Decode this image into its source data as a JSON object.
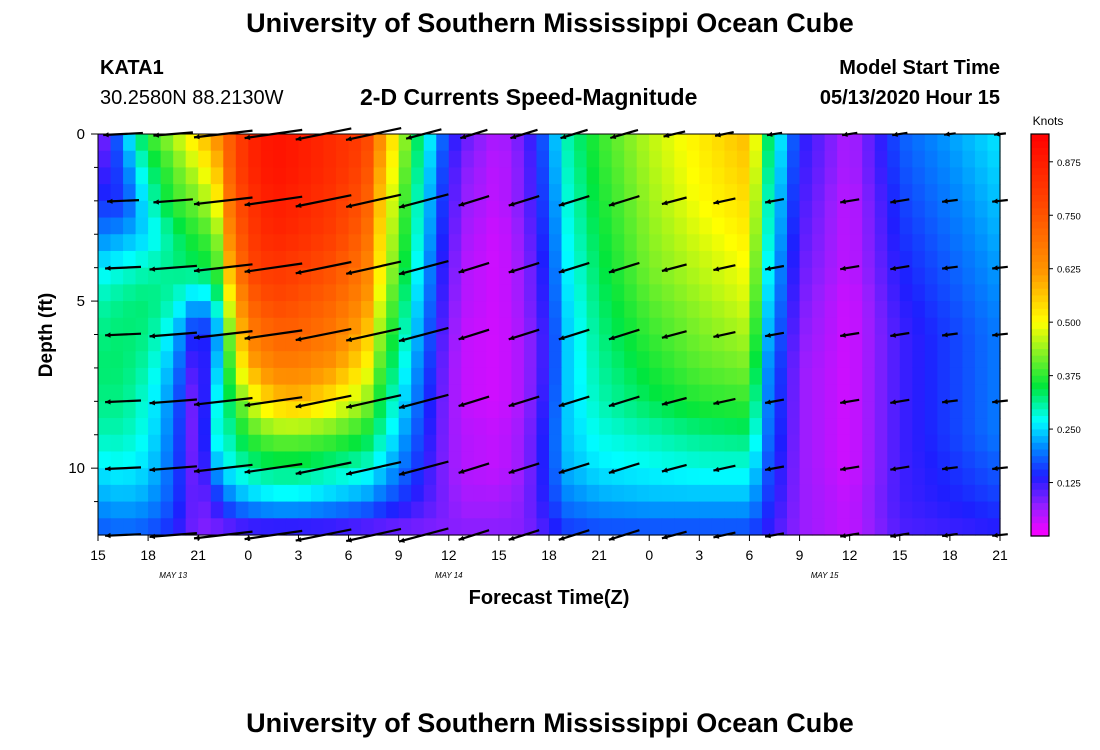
{
  "header": {
    "title": "University of Southern Mississippi Ocean Cube",
    "station_id": "KATA1",
    "station_coords": "30.2580N 88.2130W",
    "model_start_label": "Model Start Time",
    "model_start_value": "05/13/2020 Hour 15"
  },
  "footer": {
    "title": "University of Southern Mississippi Ocean Cube"
  },
  "chart_data": {
    "type": "heatmap",
    "title": "2-D Currents Speed-Magnitude",
    "xlabel": "Forecast Time(Z)",
    "ylabel": "Depth (ft)",
    "colorbar_label": "Knots",
    "x_hours": [
      0,
      3,
      6,
      9,
      12,
      15,
      18,
      21,
      24,
      27,
      30,
      33,
      36,
      39,
      42,
      45,
      48,
      51,
      54
    ],
    "x_tick_labels": [
      "15",
      "18",
      "21",
      "0",
      "3",
      "6",
      "9",
      "12",
      "15",
      "18",
      "21",
      "0",
      "3",
      "6",
      "9",
      "12",
      "15",
      "18",
      "21"
    ],
    "date_labels": [
      {
        "text": "MAY 13",
        "hour": 4.5
      },
      {
        "text": "MAY 14",
        "hour": 21
      },
      {
        "text": "MAY 15",
        "hour": 43.5
      }
    ],
    "depth_range": [
      0,
      12
    ],
    "y_ticks": [
      0,
      5,
      10
    ],
    "y_minor_ticks": [
      1,
      2,
      3,
      4,
      6,
      7,
      8,
      9,
      11
    ],
    "colorbar_range": [
      0,
      0.94
    ],
    "colorbar_ticks": [
      0.125,
      0.25,
      0.375,
      0.5,
      0.625,
      0.75,
      0.875
    ],
    "colorbar_tick_labels": [
      "0.125",
      "0.250",
      "0.375",
      "0.500",
      "0.625",
      "0.750",
      "0.875"
    ],
    "speed_depths": [
      0,
      1,
      2,
      3,
      4,
      5,
      6,
      7,
      8,
      9,
      10,
      11,
      12
    ],
    "speed_hours": [
      0,
      1.5,
      3,
      4.5,
      6,
      7,
      8,
      9,
      10.5,
      12,
      14,
      16,
      17,
      19,
      21,
      22,
      24,
      25.5,
      27,
      28,
      30,
      33,
      36,
      39,
      40,
      42,
      45,
      48,
      51,
      54
    ],
    "speed": [
      [
        0.05,
        0.22,
        0.38,
        0.45,
        0.55,
        0.62,
        0.75,
        0.85,
        0.9,
        0.88,
        0.84,
        0.8,
        0.62,
        0.35,
        0.15,
        0.1,
        0.05,
        0.1,
        0.2,
        0.3,
        0.38,
        0.46,
        0.52,
        0.58,
        0.35,
        0.14,
        0.05,
        0.18,
        0.22,
        0.26
      ],
      [
        0.1,
        0.18,
        0.32,
        0.4,
        0.48,
        0.55,
        0.75,
        0.85,
        0.9,
        0.88,
        0.84,
        0.78,
        0.58,
        0.33,
        0.13,
        0.08,
        0.04,
        0.09,
        0.19,
        0.29,
        0.37,
        0.45,
        0.51,
        0.56,
        0.33,
        0.13,
        0.05,
        0.17,
        0.21,
        0.25
      ],
      [
        0.15,
        0.15,
        0.28,
        0.38,
        0.42,
        0.48,
        0.72,
        0.82,
        0.88,
        0.86,
        0.82,
        0.75,
        0.55,
        0.31,
        0.12,
        0.07,
        0.04,
        0.09,
        0.18,
        0.28,
        0.36,
        0.44,
        0.5,
        0.54,
        0.31,
        0.12,
        0.04,
        0.16,
        0.2,
        0.24
      ],
      [
        0.2,
        0.22,
        0.25,
        0.32,
        0.38,
        0.4,
        0.68,
        0.8,
        0.86,
        0.84,
        0.8,
        0.72,
        0.52,
        0.3,
        0.11,
        0.06,
        0.03,
        0.08,
        0.17,
        0.27,
        0.35,
        0.43,
        0.48,
        0.52,
        0.3,
        0.11,
        0.04,
        0.15,
        0.19,
        0.23
      ],
      [
        0.26,
        0.28,
        0.3,
        0.32,
        0.34,
        0.36,
        0.62,
        0.78,
        0.82,
        0.8,
        0.76,
        0.68,
        0.5,
        0.28,
        0.1,
        0.05,
        0.03,
        0.07,
        0.16,
        0.26,
        0.34,
        0.42,
        0.46,
        0.5,
        0.28,
        0.1,
        0.04,
        0.14,
        0.18,
        0.22
      ],
      [
        0.3,
        0.32,
        0.33,
        0.3,
        0.22,
        0.28,
        0.52,
        0.72,
        0.78,
        0.76,
        0.72,
        0.64,
        0.46,
        0.26,
        0.09,
        0.05,
        0.03,
        0.07,
        0.15,
        0.25,
        0.33,
        0.4,
        0.44,
        0.48,
        0.26,
        0.09,
        0.03,
        0.13,
        0.17,
        0.21
      ],
      [
        0.32,
        0.33,
        0.32,
        0.25,
        0.12,
        0.18,
        0.45,
        0.66,
        0.72,
        0.72,
        0.68,
        0.58,
        0.42,
        0.24,
        0.08,
        0.04,
        0.03,
        0.06,
        0.14,
        0.24,
        0.32,
        0.38,
        0.42,
        0.45,
        0.24,
        0.08,
        0.03,
        0.12,
        0.16,
        0.2
      ],
      [
        0.33,
        0.33,
        0.3,
        0.22,
        0.08,
        0.22,
        0.4,
        0.58,
        0.66,
        0.66,
        0.62,
        0.52,
        0.38,
        0.22,
        0.07,
        0.04,
        0.03,
        0.06,
        0.14,
        0.24,
        0.31,
        0.36,
        0.4,
        0.42,
        0.22,
        0.07,
        0.03,
        0.12,
        0.16,
        0.2
      ],
      [
        0.32,
        0.32,
        0.28,
        0.2,
        0.06,
        0.26,
        0.35,
        0.46,
        0.56,
        0.58,
        0.52,
        0.44,
        0.34,
        0.2,
        0.07,
        0.04,
        0.03,
        0.06,
        0.15,
        0.24,
        0.3,
        0.34,
        0.37,
        0.38,
        0.21,
        0.07,
        0.03,
        0.12,
        0.16,
        0.2
      ],
      [
        0.3,
        0.3,
        0.27,
        0.19,
        0.06,
        0.28,
        0.31,
        0.38,
        0.42,
        0.42,
        0.4,
        0.36,
        0.3,
        0.18,
        0.07,
        0.05,
        0.04,
        0.07,
        0.16,
        0.24,
        0.28,
        0.3,
        0.32,
        0.33,
        0.2,
        0.07,
        0.03,
        0.12,
        0.16,
        0.2
      ],
      [
        0.26,
        0.27,
        0.25,
        0.18,
        0.07,
        0.22,
        0.28,
        0.31,
        0.33,
        0.33,
        0.31,
        0.29,
        0.25,
        0.16,
        0.07,
        0.05,
        0.04,
        0.07,
        0.16,
        0.23,
        0.26,
        0.27,
        0.28,
        0.28,
        0.18,
        0.07,
        0.03,
        0.12,
        0.15,
        0.18
      ],
      [
        0.22,
        0.23,
        0.22,
        0.17,
        0.08,
        0.13,
        0.2,
        0.23,
        0.25,
        0.25,
        0.23,
        0.21,
        0.18,
        0.13,
        0.08,
        0.06,
        0.06,
        0.08,
        0.15,
        0.2,
        0.22,
        0.23,
        0.23,
        0.23,
        0.16,
        0.07,
        0.04,
        0.12,
        0.14,
        0.16
      ],
      [
        0.17,
        0.18,
        0.17,
        0.14,
        0.08,
        0.08,
        0.08,
        0.09,
        0.09,
        0.09,
        0.09,
        0.08,
        0.08,
        0.08,
        0.08,
        0.08,
        0.08,
        0.08,
        0.12,
        0.15,
        0.16,
        0.16,
        0.16,
        0.16,
        0.13,
        0.07,
        0.04,
        0.11,
        0.12,
        0.13
      ]
    ],
    "vector_depths": [
      0,
      2,
      4,
      6,
      8,
      10,
      12
    ],
    "vector_hours": [
      1.5,
      4.5,
      7.5,
      10.5,
      13.5,
      16.5,
      19.5,
      22.5,
      25.5,
      28.5,
      31.5,
      34.5,
      37.5,
      40.5,
      45,
      48,
      51,
      54
    ],
    "vectors": [
      [
        [
          1,
          6
        ],
        [
          1,
          9
        ],
        [
          1.5,
          13
        ],
        [
          1.5,
          16
        ],
        [
          1.5,
          22
        ],
        [
          1.5,
          23
        ],
        [
          1,
          28
        ],
        [
          0.8,
          32
        ],
        [
          0.8,
          32
        ],
        [
          0.8,
          32
        ],
        [
          0.8,
          30
        ],
        [
          0.6,
          26
        ],
        [
          0.5,
          22
        ],
        [
          0.4,
          18
        ],
        [
          0.4,
          18
        ],
        [
          0.4,
          18
        ],
        [
          0.3,
          14
        ],
        [
          0.3,
          12
        ]
      ],
      [
        [
          0.8,
          5
        ],
        [
          1,
          9
        ],
        [
          1.5,
          13
        ],
        [
          1.5,
          16
        ],
        [
          1.5,
          22
        ],
        [
          1.5,
          24
        ],
        [
          1.4,
          28
        ],
        [
          0.9,
          32
        ],
        [
          0.9,
          32
        ],
        [
          0.9,
          32
        ],
        [
          0.9,
          32
        ],
        [
          0.7,
          28
        ],
        [
          0.6,
          24
        ],
        [
          0.5,
          20
        ],
        [
          0.5,
          18
        ],
        [
          0.5,
          18
        ],
        [
          0.4,
          14
        ],
        [
          0.4,
          12
        ]
      ],
      [
        [
          0.9,
          5
        ],
        [
          1.2,
          9
        ],
        [
          1.5,
          13
        ],
        [
          1.5,
          16
        ],
        [
          1.5,
          22
        ],
        [
          1.5,
          24
        ],
        [
          1.4,
          28
        ],
        [
          0.9,
          32
        ],
        [
          0.9,
          32
        ],
        [
          0.9,
          32
        ],
        [
          0.9,
          32
        ],
        [
          0.7,
          28
        ],
        [
          0.6,
          24
        ],
        [
          0.5,
          20
        ],
        [
          0.5,
          18
        ],
        [
          0.5,
          18
        ],
        [
          0.4,
          14
        ],
        [
          0.4,
          12
        ]
      ],
      [
        [
          0.9,
          5
        ],
        [
          1.2,
          9
        ],
        [
          1.5,
          13
        ],
        [
          1.5,
          16
        ],
        [
          1.5,
          22
        ],
        [
          1.5,
          24
        ],
        [
          1.4,
          28
        ],
        [
          0.9,
          32
        ],
        [
          0.9,
          32
        ],
        [
          0.9,
          32
        ],
        [
          0.9,
          32
        ],
        [
          0.7,
          28
        ],
        [
          0.6,
          24
        ],
        [
          0.5,
          20
        ],
        [
          0.5,
          18
        ],
        [
          0.5,
          18
        ],
        [
          0.4,
          14
        ],
        [
          0.4,
          12
        ]
      ],
      [
        [
          0.9,
          5
        ],
        [
          1.2,
          9
        ],
        [
          1.5,
          13
        ],
        [
          1.5,
          16
        ],
        [
          1.5,
          22
        ],
        [
          1.5,
          24
        ],
        [
          1.4,
          28
        ],
        [
          0.9,
          32
        ],
        [
          0.9,
          32
        ],
        [
          0.9,
          32
        ],
        [
          0.9,
          32
        ],
        [
          0.7,
          28
        ],
        [
          0.6,
          24
        ],
        [
          0.5,
          20
        ],
        [
          0.5,
          18
        ],
        [
          0.5,
          18
        ],
        [
          0.4,
          14
        ],
        [
          0.4,
          12
        ]
      ],
      [
        [
          0.9,
          5
        ],
        [
          1.2,
          9
        ],
        [
          1.5,
          13
        ],
        [
          1.5,
          16
        ],
        [
          1.5,
          22
        ],
        [
          1.5,
          24
        ],
        [
          1.4,
          28
        ],
        [
          0.9,
          32
        ],
        [
          0.9,
          32
        ],
        [
          0.9,
          32
        ],
        [
          0.9,
          32
        ],
        [
          0.7,
          28
        ],
        [
          0.6,
          24
        ],
        [
          0.5,
          20
        ],
        [
          0.5,
          18
        ],
        [
          0.5,
          18
        ],
        [
          0.4,
          14
        ],
        [
          0.4,
          12
        ]
      ],
      [
        [
          0.9,
          5
        ],
        [
          1.2,
          9
        ],
        [
          1.5,
          13
        ],
        [
          1.5,
          16
        ],
        [
          1.5,
          22
        ],
        [
          1.5,
          24
        ],
        [
          1.4,
          28
        ],
        [
          0.9,
          32
        ],
        [
          0.9,
          32
        ],
        [
          0.9,
          32
        ],
        [
          0.9,
          32
        ],
        [
          0.7,
          28
        ],
        [
          0.6,
          24
        ],
        [
          0.5,
          20
        ],
        [
          0.5,
          18
        ],
        [
          0.5,
          18
        ],
        [
          0.4,
          14
        ],
        [
          0.4,
          12
        ]
      ]
    ]
  }
}
